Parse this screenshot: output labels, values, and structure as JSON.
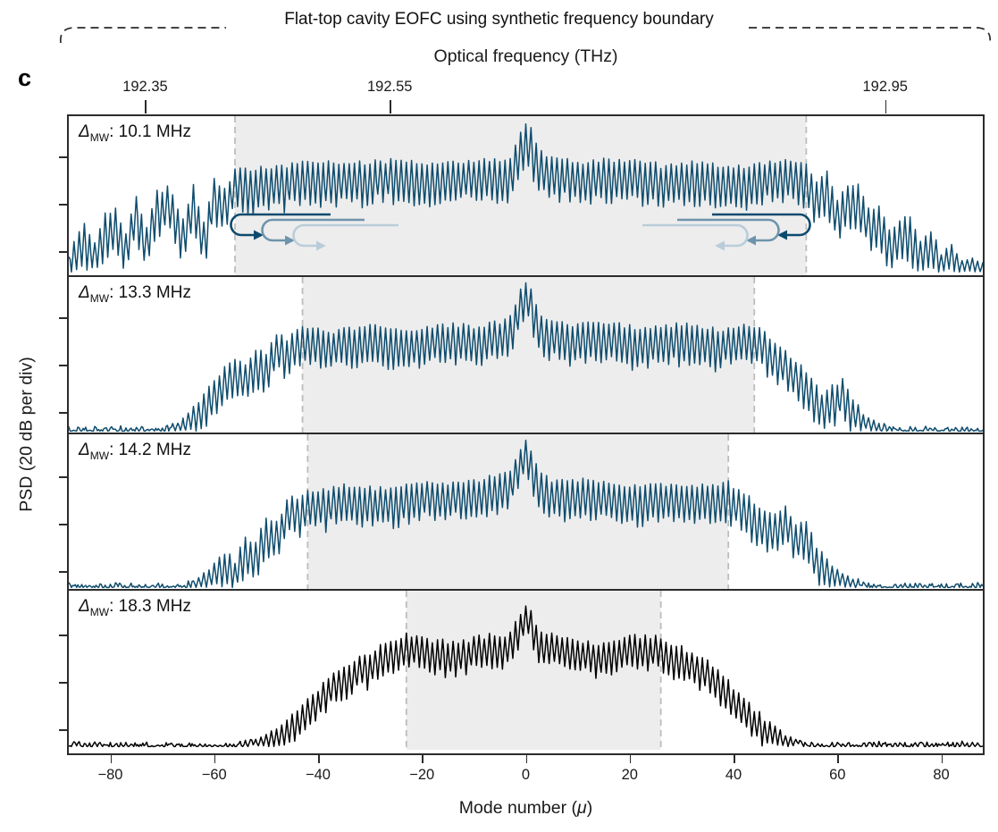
{
  "figure_label": "c",
  "bracket_title": "Flat-top cavity EOFC using synthetic frequency boundary",
  "chart_data": {
    "type": "line",
    "title": "Flat-top cavity EOFC using synthetic frequency boundary",
    "top_axis": {
      "label": "Optical frequency (THz)",
      "ticks": [
        {
          "label": "192.35",
          "mode": -73.3
        },
        {
          "label": "192.55",
          "mode": -26.2
        },
        {
          "label": "192.95",
          "mode": 69.2
        }
      ]
    },
    "x_axis": {
      "label_prefix": "Mode number (",
      "label_mu": "μ",
      "label_suffix": ")",
      "range": [
        -88,
        88
      ],
      "ticks": [
        {
          "value": -80,
          "label": "−80"
        },
        {
          "value": -60,
          "label": "−60"
        },
        {
          "value": -40,
          "label": "−40"
        },
        {
          "value": -20,
          "label": "−20"
        },
        {
          "value": 0,
          "label": "0"
        },
        {
          "value": 20,
          "label": "20"
        },
        {
          "value": 40,
          "label": "40"
        },
        {
          "value": 60,
          "label": "60"
        },
        {
          "value": 80,
          "label": "80"
        }
      ]
    },
    "y_axis": {
      "label": "PSD (20 dB per div)",
      "div_ticks_per_panel": [
        45,
        98,
        151
      ]
    },
    "style": {
      "trace_teal": "#0e4c6d",
      "trace_black": "#000000",
      "shade_fill": "#ededed",
      "dash_color": "#bdbdbd",
      "frame_color": "#2b2b2b",
      "arrow_colors": [
        "#0c4a6e",
        "#6e94ac",
        "#b9cdd9"
      ]
    },
    "panels": [
      {
        "label_prefix": "Δ",
        "label_sub": "MW",
        "label_rest": ": 10.1 MHz",
        "delta_mw_mhz": 10.1,
        "color": "#0e4c6d",
        "boundary_modes": [
          -56,
          54
        ],
        "osc_depth": 0.26,
        "peak_extra": 0.2,
        "has_arrows": true,
        "envelope": [
          [
            -88,
            0.1
          ],
          [
            -87,
            0.22
          ],
          [
            -85,
            0.34
          ],
          [
            -83,
            0.18
          ],
          [
            -81,
            0.38
          ],
          [
            -79,
            0.44
          ],
          [
            -77,
            0.25
          ],
          [
            -75,
            0.5
          ],
          [
            -73,
            0.28
          ],
          [
            -71,
            0.52
          ],
          [
            -69,
            0.56
          ],
          [
            -66,
            0.38
          ],
          [
            -64,
            0.6
          ],
          [
            -62,
            0.33
          ],
          [
            -60,
            0.62
          ],
          [
            -58,
            0.55
          ],
          [
            -56,
            0.68
          ],
          [
            -52,
            0.7
          ],
          [
            -40,
            0.72
          ],
          [
            -20,
            0.73
          ],
          [
            0,
            0.74
          ],
          [
            20,
            0.73
          ],
          [
            40,
            0.72
          ],
          [
            50,
            0.72
          ],
          [
            54,
            0.71
          ],
          [
            56,
            0.62
          ],
          [
            58,
            0.66
          ],
          [
            60,
            0.45
          ],
          [
            62,
            0.55
          ],
          [
            64,
            0.58
          ],
          [
            66,
            0.4
          ],
          [
            68,
            0.44
          ],
          [
            70,
            0.28
          ],
          [
            72,
            0.34
          ],
          [
            74,
            0.38
          ],
          [
            76,
            0.22
          ],
          [
            78,
            0.26
          ],
          [
            80,
            0.14
          ],
          [
            82,
            0.18
          ],
          [
            84,
            0.08
          ],
          [
            86,
            0.1
          ],
          [
            88,
            0.05
          ]
        ]
      },
      {
        "label_prefix": "Δ",
        "label_sub": "MW",
        "label_rest": ": 13.3 MHz",
        "delta_mw_mhz": 13.3,
        "color": "#0e4c6d",
        "boundary_modes": [
          -43,
          44
        ],
        "osc_depth": 0.24,
        "peak_extra": 0.22,
        "has_arrows": false,
        "envelope": [
          [
            -88,
            0.02
          ],
          [
            -70,
            0.02
          ],
          [
            -67,
            0.06
          ],
          [
            -64,
            0.16
          ],
          [
            -61,
            0.3
          ],
          [
            -58,
            0.42
          ],
          [
            -56,
            0.5
          ],
          [
            -54,
            0.44
          ],
          [
            -52,
            0.56
          ],
          [
            -50,
            0.52
          ],
          [
            -48,
            0.62
          ],
          [
            -46,
            0.6
          ],
          [
            -44,
            0.66
          ],
          [
            -40,
            0.68
          ],
          [
            -30,
            0.7
          ],
          [
            -15,
            0.71
          ],
          [
            0,
            0.72
          ],
          [
            15,
            0.71
          ],
          [
            30,
            0.71
          ],
          [
            40,
            0.7
          ],
          [
            44,
            0.69
          ],
          [
            47,
            0.62
          ],
          [
            50,
            0.54
          ],
          [
            53,
            0.44
          ],
          [
            55,
            0.36
          ],
          [
            57,
            0.26
          ],
          [
            59,
            0.3
          ],
          [
            61,
            0.34
          ],
          [
            63,
            0.22
          ],
          [
            65,
            0.12
          ],
          [
            68,
            0.05
          ],
          [
            72,
            0.02
          ],
          [
            88,
            0.02
          ]
        ]
      },
      {
        "label_prefix": "Δ",
        "label_sub": "MW",
        "label_rest": ": 14.2 MHz",
        "delta_mw_mhz": 14.2,
        "color": "#0e4c6d",
        "boundary_modes": [
          -42,
          39
        ],
        "osc_depth": 0.24,
        "peak_extra": 0.22,
        "has_arrows": false,
        "envelope": [
          [
            -88,
            0.02
          ],
          [
            -66,
            0.02
          ],
          [
            -63,
            0.07
          ],
          [
            -60,
            0.16
          ],
          [
            -58,
            0.24
          ],
          [
            -56,
            0.18
          ],
          [
            -54,
            0.34
          ],
          [
            -52,
            0.3
          ],
          [
            -50,
            0.46
          ],
          [
            -48,
            0.42
          ],
          [
            -46,
            0.58
          ],
          [
            -44,
            0.62
          ],
          [
            -42,
            0.66
          ],
          [
            -36,
            0.68
          ],
          [
            -25,
            0.7
          ],
          [
            -10,
            0.71
          ],
          [
            0,
            0.72
          ],
          [
            15,
            0.71
          ],
          [
            30,
            0.7
          ],
          [
            36,
            0.7
          ],
          [
            39,
            0.69
          ],
          [
            42,
            0.62
          ],
          [
            45,
            0.54
          ],
          [
            48,
            0.5
          ],
          [
            50,
            0.56
          ],
          [
            52,
            0.4
          ],
          [
            54,
            0.44
          ],
          [
            56,
            0.28
          ],
          [
            58,
            0.2
          ],
          [
            60,
            0.12
          ],
          [
            63,
            0.06
          ],
          [
            67,
            0.02
          ],
          [
            88,
            0.02
          ]
        ]
      },
      {
        "label_prefix": "Δ",
        "label_sub": "MW",
        "label_rest": ": 18.3 MHz",
        "delta_mw_mhz": 18.3,
        "color": "#000000",
        "boundary_modes": [
          -23,
          26
        ],
        "osc_depth": 0.2,
        "peak_extra": 0.18,
        "has_arrows": false,
        "envelope": [
          [
            -88,
            0.02
          ],
          [
            -56,
            0.02
          ],
          [
            -52,
            0.05
          ],
          [
            -48,
            0.12
          ],
          [
            -44,
            0.24
          ],
          [
            -40,
            0.38
          ],
          [
            -36,
            0.52
          ],
          [
            -32,
            0.62
          ],
          [
            -28,
            0.68
          ],
          [
            -25,
            0.71
          ],
          [
            -23,
            0.73
          ],
          [
            -18,
            0.71
          ],
          [
            -12,
            0.69
          ],
          [
            -6,
            0.71
          ],
          [
            0,
            0.73
          ],
          [
            6,
            0.71
          ],
          [
            12,
            0.7
          ],
          [
            18,
            0.72
          ],
          [
            22,
            0.73
          ],
          [
            26,
            0.72
          ],
          [
            30,
            0.66
          ],
          [
            34,
            0.58
          ],
          [
            38,
            0.46
          ],
          [
            42,
            0.32
          ],
          [
            46,
            0.18
          ],
          [
            50,
            0.08
          ],
          [
            54,
            0.03
          ],
          [
            58,
            0.02
          ],
          [
            88,
            0.02
          ]
        ]
      }
    ]
  }
}
